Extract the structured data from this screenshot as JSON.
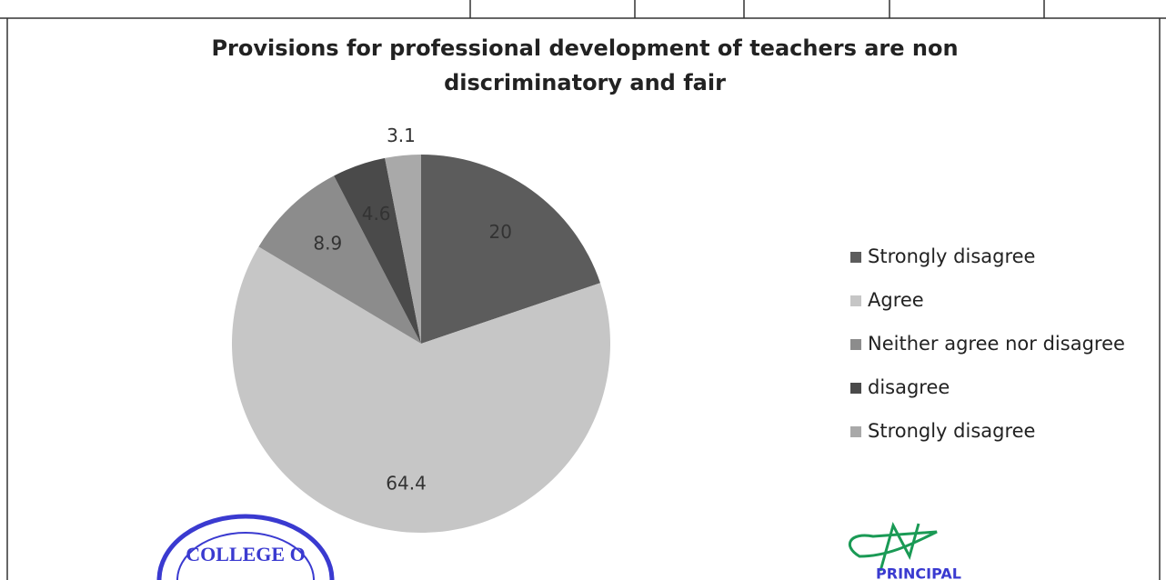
{
  "chart_data": {
    "type": "pie",
    "title": "Provisions for professional development of teachers are non discriminatory and fair",
    "categories": [
      "Strongly disagree",
      "Agree",
      "Neither agree nor disagree",
      "disagree",
      "Strongly disagree"
    ],
    "values": [
      20,
      64.4,
      8.9,
      4.6,
      3.1
    ],
    "colors": [
      "#5c5c5c",
      "#c6c6c6",
      "#8c8c8c",
      "#4a4a4a",
      "#a9a9a9"
    ],
    "legend": "right"
  },
  "stamp": "COLLEGE O",
  "signature_caption": "PRINCIPAL"
}
